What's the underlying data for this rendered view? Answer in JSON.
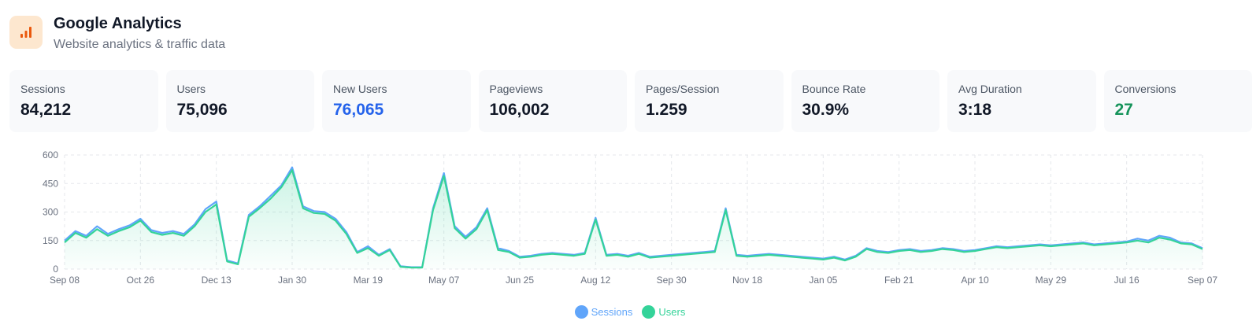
{
  "app": {
    "title": "Google Analytics",
    "subtitle": "Website analytics & traffic data",
    "icon": "bar-chart-icon"
  },
  "colors": {
    "accent_orange": "#ea580c",
    "logo_bg": "#fde7cf",
    "blue": "#2563eb",
    "green": "#15935a",
    "sessions": "#60a5fa",
    "users": "#34d399"
  },
  "stats": [
    {
      "label": "Sessions",
      "value": "84,212",
      "color": "#111827"
    },
    {
      "label": "Users",
      "value": "75,096",
      "color": "#111827"
    },
    {
      "label": "New Users",
      "value": "76,065",
      "color": "#2563eb"
    },
    {
      "label": "Pageviews",
      "value": "106,002",
      "color": "#111827"
    },
    {
      "label": "Pages/Session",
      "value": "1.259",
      "color": "#111827"
    },
    {
      "label": "Bounce Rate",
      "value": "30.9%",
      "color": "#111827"
    },
    {
      "label": "Avg Duration",
      "value": "3:18",
      "color": "#111827"
    },
    {
      "label": "Conversions",
      "value": "27",
      "color": "#15935a"
    }
  ],
  "chart_data": {
    "type": "area",
    "ylim": [
      0,
      600
    ],
    "y_ticks": [
      "0",
      "150",
      "300",
      "450",
      "600"
    ],
    "x_ticks": [
      "Sep 08",
      "Oct 26",
      "Dec 13",
      "Jan 30",
      "Mar 19",
      "May 07",
      "Jun 25",
      "Aug 12",
      "Sep 30",
      "Nov 18",
      "Jan 05",
      "Feb 21",
      "Apr 10",
      "May 29",
      "Jul 16",
      "Sep 07"
    ],
    "grid": true,
    "legend_position": "bottom",
    "series": [
      {
        "name": "Sessions",
        "color": "#60a5fa",
        "x": [
          "Sep 08",
          "Sep 15",
          "Sep 22",
          "Sep 29",
          "Oct 06",
          "Oct 13",
          "Oct 20",
          "Oct 26",
          "Nov 02",
          "Nov 09",
          "Nov 16",
          "Nov 23",
          "Nov 30",
          "Dec 07",
          "Dec 13",
          "Dec 20",
          "Dec 27",
          "Jan 03",
          "Jan 10",
          "Jan 17",
          "Jan 24",
          "Jan 30",
          "Feb 06",
          "Feb 13",
          "Feb 20",
          "Feb 27",
          "Mar 05",
          "Mar 12",
          "Mar 19",
          "Mar 26",
          "Apr 02",
          "Apr 09",
          "Apr 16",
          "Apr 23",
          "Apr 30",
          "May 07",
          "May 14",
          "May 21",
          "May 28",
          "Jun 04",
          "Jun 11",
          "Jun 18",
          "Jun 25",
          "Jul 02",
          "Jul 09",
          "Jul 16",
          "Jul 23",
          "Jul 30",
          "Aug 06",
          "Aug 12",
          "Aug 19",
          "Aug 26",
          "Sep 02",
          "Sep 09",
          "Sep 16",
          "Sep 23",
          "Sep 30",
          "Oct 07",
          "Oct 14",
          "Oct 21",
          "Oct 28",
          "Nov 04",
          "Nov 11",
          "Nov 18",
          "Nov 25",
          "Dec 02",
          "Dec 09",
          "Dec 16",
          "Dec 23",
          "Dec 30",
          "Jan 05",
          "Jan 12",
          "Jan 19",
          "Jan 26",
          "Feb 02",
          "Feb 09",
          "Feb 16",
          "Feb 21",
          "Feb 28",
          "Mar 07",
          "Mar 14",
          "Mar 21",
          "Mar 28",
          "Apr 04",
          "Apr 10",
          "Apr 17",
          "Apr 24",
          "May 01",
          "May 08",
          "May 15",
          "May 22",
          "May 29",
          "Jun 05",
          "Jun 12",
          "Jun 19",
          "Jun 26",
          "Jul 03",
          "Jul 10",
          "Jul 16",
          "Jul 23",
          "Jul 30",
          "Aug 06",
          "Aug 13",
          "Aug 20",
          "Aug 27",
          "Sep 07"
        ],
        "values": [
          150,
          200,
          175,
          225,
          185,
          210,
          230,
          265,
          205,
          190,
          200,
          185,
          235,
          315,
          355,
          45,
          30,
          285,
          330,
          385,
          440,
          535,
          330,
          305,
          300,
          265,
          195,
          90,
          120,
          75,
          105,
          15,
          10,
          10,
          320,
          505,
          225,
          170,
          220,
          320,
          110,
          95,
          65,
          70,
          80,
          85,
          80,
          75,
          85,
          270,
          75,
          80,
          70,
          85,
          65,
          70,
          75,
          80,
          85,
          90,
          95,
          320,
          75,
          70,
          75,
          80,
          75,
          70,
          65,
          60,
          55,
          65,
          50,
          70,
          110,
          95,
          90,
          100,
          105,
          95,
          100,
          110,
          105,
          95,
          100,
          110,
          120,
          115,
          120,
          125,
          130,
          125,
          130,
          135,
          140,
          130,
          135,
          140,
          145,
          160,
          150,
          175,
          165,
          140,
          135,
          110
        ]
      },
      {
        "name": "Users",
        "color": "#34d399",
        "x": [
          "Sep 08",
          "Sep 15",
          "Sep 22",
          "Sep 29",
          "Oct 06",
          "Oct 13",
          "Oct 20",
          "Oct 26",
          "Nov 02",
          "Nov 09",
          "Nov 16",
          "Nov 23",
          "Nov 30",
          "Dec 07",
          "Dec 13",
          "Dec 20",
          "Dec 27",
          "Jan 03",
          "Jan 10",
          "Jan 17",
          "Jan 24",
          "Jan 30",
          "Feb 06",
          "Feb 13",
          "Feb 20",
          "Feb 27",
          "Mar 05",
          "Mar 12",
          "Mar 19",
          "Mar 26",
          "Apr 02",
          "Apr 09",
          "Apr 16",
          "Apr 23",
          "Apr 30",
          "May 07",
          "May 14",
          "May 21",
          "May 28",
          "Jun 04",
          "Jun 11",
          "Jun 18",
          "Jun 25",
          "Jul 02",
          "Jul 09",
          "Jul 16",
          "Jul 23",
          "Jul 30",
          "Aug 06",
          "Aug 12",
          "Aug 19",
          "Aug 26",
          "Sep 02",
          "Sep 09",
          "Sep 16",
          "Sep 23",
          "Sep 30",
          "Oct 07",
          "Oct 14",
          "Oct 21",
          "Oct 28",
          "Nov 04",
          "Nov 11",
          "Nov 18",
          "Nov 25",
          "Dec 02",
          "Dec 09",
          "Dec 16",
          "Dec 23",
          "Dec 30",
          "Jan 05",
          "Jan 12",
          "Jan 19",
          "Jan 26",
          "Feb 02",
          "Feb 09",
          "Feb 16",
          "Feb 21",
          "Feb 28",
          "Mar 07",
          "Mar 14",
          "Mar 21",
          "Mar 28",
          "Apr 04",
          "Apr 10",
          "Apr 17",
          "Apr 24",
          "May 01",
          "May 08",
          "May 15",
          "May 22",
          "May 29",
          "Jun 05",
          "Jun 12",
          "Jun 19",
          "Jun 26",
          "Jul 03",
          "Jul 10",
          "Jul 16",
          "Jul 23",
          "Jul 30",
          "Aug 06",
          "Aug 13",
          "Aug 20",
          "Aug 27",
          "Sep 07"
        ],
        "values": [
          140,
          190,
          165,
          210,
          175,
          200,
          220,
          255,
          195,
          180,
          190,
          175,
          225,
          300,
          340,
          40,
          25,
          275,
          320,
          370,
          430,
          520,
          320,
          295,
          290,
          255,
          185,
          85,
          110,
          70,
          100,
          12,
          8,
          8,
          310,
          490,
          215,
          160,
          210,
          310,
          100,
          90,
          60,
          65,
          75,
          80,
          75,
          70,
          80,
          260,
          70,
          75,
          65,
          80,
          60,
          65,
          70,
          75,
          80,
          85,
          90,
          310,
          70,
          65,
          70,
          75,
          70,
          65,
          60,
          55,
          50,
          60,
          45,
          65,
          105,
          90,
          85,
          95,
          100,
          90,
          95,
          105,
          100,
          90,
          95,
          105,
          115,
          110,
          115,
          120,
          125,
          120,
          125,
          130,
          135,
          125,
          130,
          135,
          140,
          150,
          140,
          165,
          155,
          135,
          130,
          105
        ]
      }
    ]
  }
}
